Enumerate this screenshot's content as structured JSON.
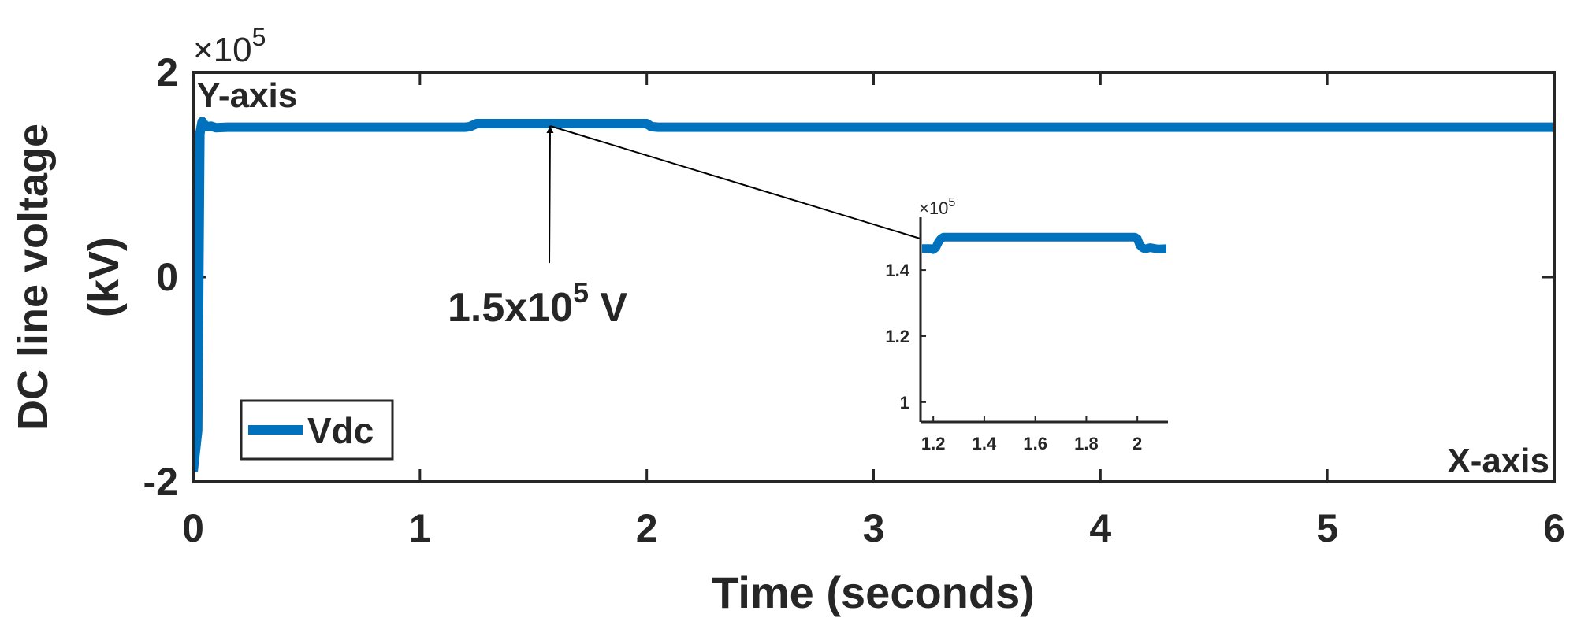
{
  "chart_data": [
    {
      "type": "line",
      "xlabel": "Time (seconds)",
      "ylabel_line1": "DC line voltage",
      "ylabel_line2": "(kV)",
      "y_exponent_label": "×10",
      "y_exponent_power": "5",
      "xlim": [
        0,
        6
      ],
      "ylim": [
        -200000,
        200000
      ],
      "xticks": [
        0,
        1,
        2,
        3,
        4,
        5,
        6
      ],
      "xtick_labels": [
        "0",
        "1",
        "2",
        "3",
        "4",
        "5",
        "6"
      ],
      "yticks": [
        -200000,
        0,
        200000
      ],
      "ytick_labels": [
        "-2",
        "0",
        "2"
      ],
      "grid": false,
      "legend_position": "bottom-left",
      "corner_labels": {
        "y": "Y-axis",
        "x": "X-axis"
      },
      "annotation": {
        "text_main": "1.5x10",
        "text_sup": "5",
        "text_unit": " V",
        "point": [
          1.6,
          150000
        ]
      },
      "series": [
        {
          "name": "Vdc",
          "color": "#0072BD",
          "x": [
            0,
            0.02,
            0.03,
            0.04,
            0.05,
            0.06,
            0.08,
            0.1,
            0.15,
            0.3,
            0.6,
            1.0,
            1.2,
            1.22,
            1.25,
            1.3,
            1.6,
            1.9,
            2.0,
            2.02,
            2.05,
            2.1,
            3.0,
            4.0,
            5.0,
            6.0
          ],
          "y": [
            -190000,
            -150000,
            140000,
            152000,
            149000,
            147000,
            147500,
            146000,
            146500,
            146500,
            146500,
            146500,
            146500,
            147000,
            150000,
            150000,
            150000,
            150000,
            150000,
            147000,
            146500,
            146500,
            146500,
            146500,
            146500,
            146500
          ]
        }
      ]
    },
    {
      "type": "line",
      "title": "",
      "xlim": [
        1.15,
        2.12
      ],
      "ylim": [
        94000,
        156000
      ],
      "xticks": [
        1.2,
        1.4,
        1.6,
        1.8,
        2.0
      ],
      "xtick_labels": [
        "1.2",
        "1.4",
        "1.6",
        "1.8",
        "2"
      ],
      "yticks": [
        100000,
        120000,
        140000
      ],
      "ytick_labels": [
        "1",
        "1.2",
        "1.4"
      ],
      "y_exponent_label": "×10",
      "y_exponent_power": "5",
      "series": [
        {
          "color": "#0072BD",
          "x": [
            1.15,
            1.19,
            1.2,
            1.21,
            1.22,
            1.23,
            1.24,
            1.25,
            1.3,
            1.5,
            1.7,
            1.9,
            1.99,
            2.0,
            2.01,
            2.02,
            2.03,
            2.05,
            2.08,
            2.12
          ],
          "y": [
            146500,
            146500,
            146200,
            146800,
            148500,
            149500,
            150000,
            150000,
            150000,
            150000,
            150000,
            150000,
            150000,
            149500,
            147500,
            146800,
            146400,
            146800,
            146400,
            146500
          ]
        }
      ]
    }
  ]
}
